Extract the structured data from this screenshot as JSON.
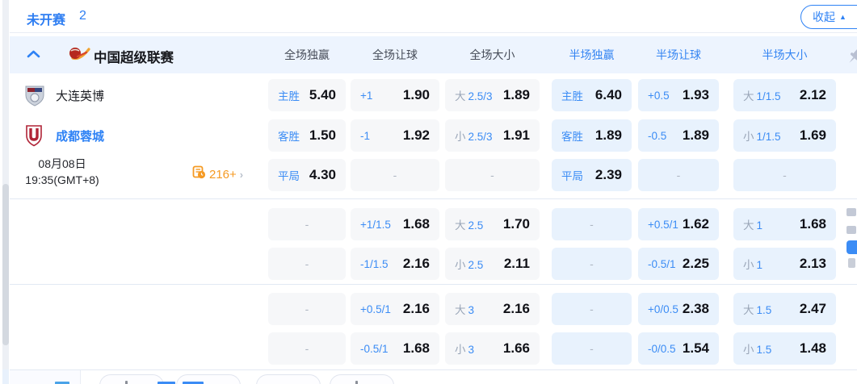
{
  "topbar": {
    "status_label": "未开赛",
    "count": "2",
    "collapse_label": "收起"
  },
  "league": {
    "title": "中国超级联赛",
    "columns": [
      {
        "label": "全场独赢",
        "group": "full"
      },
      {
        "label": "全场让球",
        "group": "full"
      },
      {
        "label": "全场大小",
        "group": "full"
      },
      {
        "label": "半场独赢",
        "group": "half"
      },
      {
        "label": "半场让球",
        "group": "half"
      },
      {
        "label": "半场大小",
        "group": "half"
      }
    ]
  },
  "match": {
    "home_team": "大连英博",
    "away_team": "成都蓉城",
    "date": "08月08日",
    "time": "19:35(GMT+8)",
    "markets_count": "216+"
  },
  "odds": {
    "groups": [
      {
        "rows": [
          {
            "cells": [
              {
                "l": "主胜",
                "v": "5.40"
              },
              {
                "l": "+1",
                "v": "1.90"
              },
              {
                "p": "大",
                "l": "2.5/3",
                "v": "1.89"
              },
              {
                "l": "主胜",
                "v": "6.40"
              },
              {
                "l": "+0.5",
                "v": "1.93"
              },
              {
                "p": "大",
                "l": "1/1.5",
                "v": "2.12"
              }
            ]
          },
          {
            "cells": [
              {
                "l": "客胜",
                "v": "1.50"
              },
              {
                "l": "-1",
                "v": "1.92"
              },
              {
                "p": "小",
                "l": "2.5/3",
                "v": "1.91"
              },
              {
                "l": "客胜",
                "v": "1.89"
              },
              {
                "l": "-0.5",
                "v": "1.89"
              },
              {
                "p": "小",
                "l": "1/1.5",
                "v": "1.69"
              }
            ]
          },
          {
            "cells": [
              {
                "l": "平局",
                "v": "4.30"
              },
              {
                "dash": true
              },
              {
                "dash": true
              },
              {
                "l": "平局",
                "v": "2.39"
              },
              {
                "dash": true
              },
              {
                "dash": true
              }
            ]
          }
        ]
      },
      {
        "rows": [
          {
            "cells": [
              {
                "dash": true
              },
              {
                "l": "+1/1.5",
                "v": "1.68"
              },
              {
                "p": "大",
                "l": "2.5",
                "v": "1.70"
              },
              {
                "dash": true
              },
              {
                "l": "+0.5/1",
                "v": "1.62"
              },
              {
                "p": "大",
                "l": "1",
                "v": "1.68"
              }
            ]
          },
          {
            "cells": [
              {
                "dash": true
              },
              {
                "l": "-1/1.5",
                "v": "2.16"
              },
              {
                "p": "小",
                "l": "2.5",
                "v": "2.11"
              },
              {
                "dash": true
              },
              {
                "l": "-0.5/1",
                "v": "2.25"
              },
              {
                "p": "小",
                "l": "1",
                "v": "2.13"
              }
            ]
          }
        ]
      },
      {
        "rows": [
          {
            "cells": [
              {
                "dash": true
              },
              {
                "l": "+0.5/1",
                "v": "2.16"
              },
              {
                "p": "大",
                "l": "3",
                "v": "2.16"
              },
              {
                "dash": true
              },
              {
                "l": "+0/0.5",
                "v": "2.38"
              },
              {
                "p": "大",
                "l": "1.5",
                "v": "2.47"
              }
            ]
          },
          {
            "cells": [
              {
                "dash": true
              },
              {
                "l": "-0.5/1",
                "v": "1.68"
              },
              {
                "p": "小",
                "l": "3",
                "v": "1.66"
              },
              {
                "dash": true
              },
              {
                "l": "-0/0.5",
                "v": "1.54"
              },
              {
                "p": "小",
                "l": "1.5",
                "v": "1.48"
              }
            ]
          }
        ]
      }
    ]
  },
  "icons": {
    "chevron_up": "collapse-league",
    "league_logo": "csl-logo",
    "pin": "pin-league",
    "markets_icon": "odds-list",
    "markets_chevron": "›"
  },
  "colors": {
    "accent_blue": "#2e82f5",
    "label_blue": "#3b8cf5",
    "muted_gray": "#9aa6b8",
    "value_text": "#101117",
    "full_cell_bg": "#f6f7f9",
    "half_cell_bg": "#e8f2fd",
    "header_bg": "#edf4fe",
    "orange": "#f59a23"
  }
}
